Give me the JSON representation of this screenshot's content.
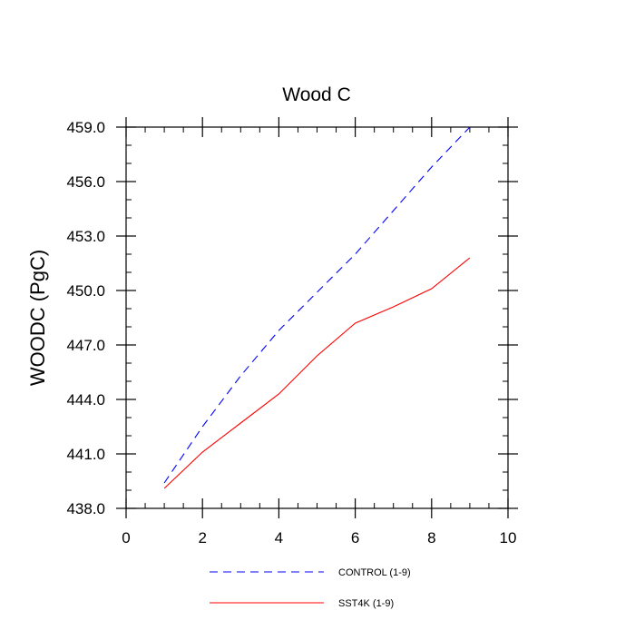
{
  "chart_data": {
    "type": "line",
    "title": "Wood C",
    "xlabel": "",
    "ylabel": "WOODC  (PgC)",
    "xlim": [
      0,
      10
    ],
    "ylim": [
      438.0,
      459.0
    ],
    "xticks": [
      0,
      2,
      4,
      6,
      8,
      10
    ],
    "xtick_labels": [
      "0",
      "2",
      "4",
      "6",
      "8",
      "10"
    ],
    "yticks": [
      438.0,
      441.0,
      444.0,
      447.0,
      450.0,
      453.0,
      456.0,
      459.0
    ],
    "ytick_labels": [
      "438.0",
      "441.0",
      "444.0",
      "447.0",
      "450.0",
      "453.0",
      "456.0",
      "459.0"
    ],
    "grid": false,
    "legend_position": "bottom",
    "series": [
      {
        "name": "CONTROL (1-9)",
        "color": "#0000ff",
        "style": "dashed",
        "x": [
          1,
          2,
          3,
          4,
          5,
          6,
          7,
          8,
          9
        ],
        "values": [
          439.4,
          442.5,
          445.3,
          447.8,
          449.9,
          452.0,
          454.4,
          456.8,
          459.0
        ]
      },
      {
        "name": "SST4K (1-9)",
        "color": "#ff0000",
        "style": "solid",
        "x": [
          1,
          2,
          3,
          4,
          5,
          6,
          7,
          8,
          9
        ],
        "values": [
          439.1,
          441.1,
          442.7,
          444.3,
          446.4,
          448.2,
          449.1,
          450.1,
          451.8
        ]
      }
    ]
  }
}
